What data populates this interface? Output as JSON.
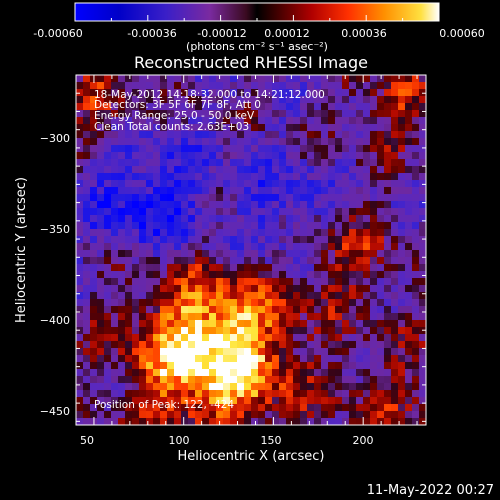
{
  "colorbar": {
    "ticks": [
      "-0.00060",
      "-0.00036",
      "-0.00012",
      "0.00012",
      "0.00036",
      "0.00060"
    ],
    "unit_label": "(photons cm⁻² s⁻¹ asec⁻²)",
    "range": [
      -0.0006,
      0.0006
    ]
  },
  "chart_data": {
    "type": "heatmap",
    "title": "Reconstructed RHESSI Image",
    "xlabel": "Heliocentric X (arcsec)",
    "ylabel": "Heliocentric Y (arcsec)",
    "xlim": [
      40,
      235
    ],
    "ylim": [
      -457,
      -265
    ],
    "xticks": [
      50,
      100,
      150,
      200
    ],
    "yticks": [
      -300,
      -350,
      -400,
      -450
    ],
    "colorscale": "rainbow-to-hot",
    "annotations": [
      "18-May-2012 14:18:32.000 to 14:21:12.000",
      "Detectors: 3F 5F 6F 7F 8F, Att 0",
      "Energy Range: 25.0 - 50.0 keV",
      "Clean    Total counts: 2.63E+03",
      "Position of Peak: 122, -424"
    ],
    "peak": {
      "x": 122,
      "y": -424
    }
  },
  "footer": {
    "date": "11-May-2022 00:27"
  }
}
